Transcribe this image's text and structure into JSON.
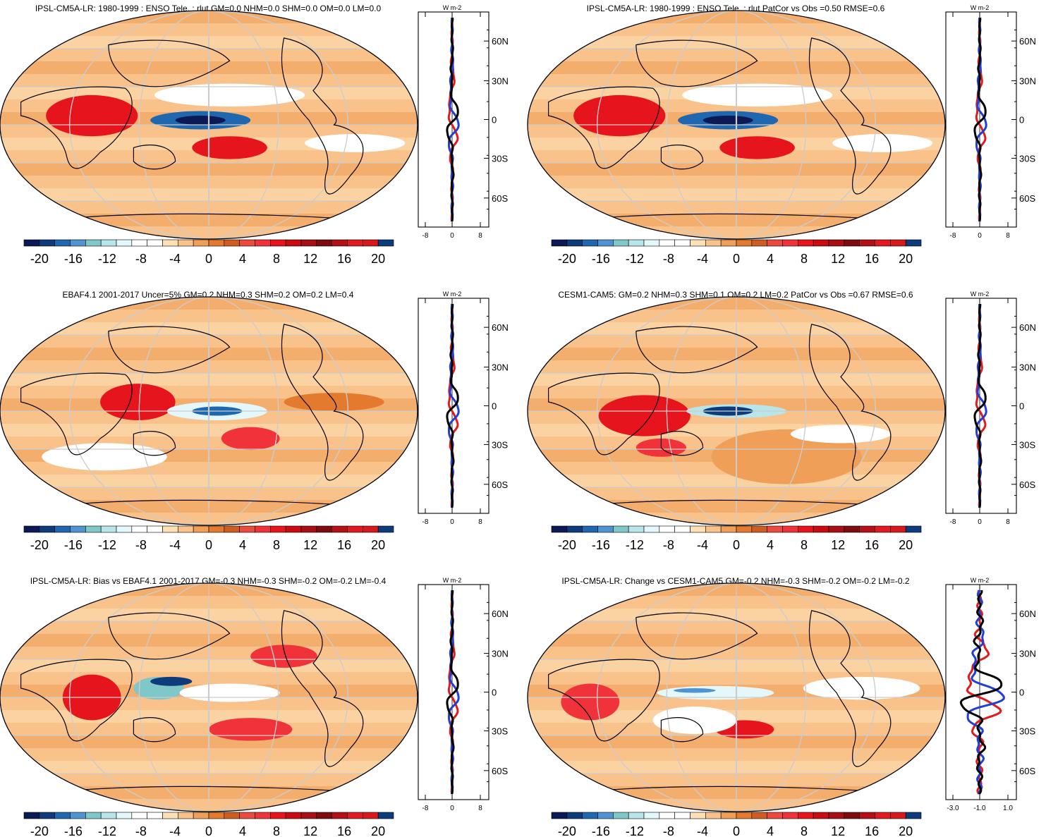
{
  "colorbar": {
    "labels": [
      "-20",
      "-16",
      "-12",
      "-8",
      "-4",
      "0",
      "4",
      "8",
      "12",
      "16",
      "20"
    ],
    "colors": [
      "#0b1a55",
      "#0e3b7a",
      "#1f68b0",
      "#4f93d0",
      "#7fc7c9",
      "#b7e5ea",
      "#e4f7fb",
      "#ffffff",
      "#ffffff",
      "#fde0b4",
      "#f9c28a",
      "#ef9f57",
      "#e37a2e",
      "#cf5d22",
      "#ea4b3e",
      "#f0333a",
      "#e6141d",
      "#c80c12",
      "#a50f15",
      "#7d0b10",
      "#b51018",
      "#e01a1f",
      "#d7191c",
      "#0e3b7a"
    ]
  },
  "profile_units": "W m-2",
  "lat_ticks": [
    "60N",
    "30N",
    "0",
    "30S",
    "60S"
  ],
  "series_colors": {
    "model": "#e31a1c",
    "reference": "#1f3fd6",
    "mean": "#000000"
  },
  "panels": [
    {
      "title": "IPSL-CM5A-LR: 1980-1999 : ENSO Tele. : rlut GM=0.0 NHM=0.0 SHM=0.0 OM=0.0 LM=0.0",
      "x_ticks": [
        "-8",
        "0",
        "8"
      ]
    },
    {
      "title": "IPSL-CM5A-LR: 1980-1999 : ENSO Tele. : rlut PatCor vs Obs =0.50 RMSE=0.6",
      "x_ticks": [
        "-8",
        "0",
        "8"
      ]
    },
    {
      "title": "EBAF4.1 2001-2017 Uncer=5% GM=0.2 NHM=0.3 SHM=0.2 OM=0.2 LM=0.4",
      "x_ticks": [
        "-8",
        "0",
        "8"
      ]
    },
    {
      "title": "CESM1-CAM5: GM=0.2 NHM=0.3 SHM=0.1 OM=0.2 LM=0.2 PatCor vs Obs =0.67 RMSE=0.6",
      "x_ticks": [
        "-8",
        "0",
        "8"
      ]
    },
    {
      "title": "IPSL-CM5A-LR: Bias vs EBAF4.1 2001-2017 GM=-0.3 NHM=-0.3 SHM=-0.2 OM=-0.2 LM=-0.4",
      "x_ticks": [
        "-8",
        "0",
        "8"
      ]
    },
    {
      "title": "IPSL-CM5A-LR: Change vs CESM1-CAM5 GM=-0.2 NHM=-0.3 SHM=-0.2 OM=-0.2 LM=-0.2",
      "x_ticks": [
        "-3.0",
        "-1.0",
        "1.0"
      ]
    }
  ]
}
